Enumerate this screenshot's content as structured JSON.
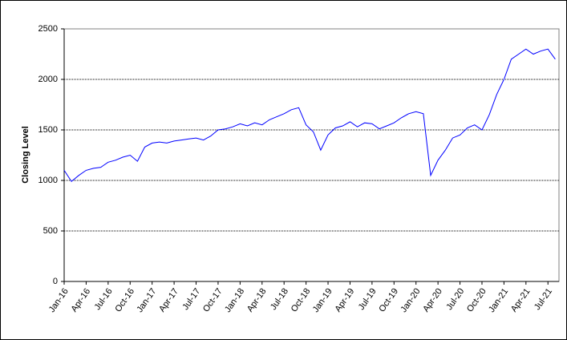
{
  "chart_data": {
    "type": "line",
    "y_label": "Closing Level",
    "categories": [
      "Jan-16",
      null,
      null,
      "Apr-16",
      null,
      null,
      "Jul-16",
      null,
      null,
      "Oct-16",
      null,
      null,
      "Jan-17",
      null,
      null,
      "Apr-17",
      null,
      null,
      "Jul-17",
      null,
      null,
      "Oct-17",
      null,
      null,
      "Jan-18",
      null,
      null,
      "Apr-18",
      null,
      null,
      "Jul-18",
      null,
      null,
      "Oct-18",
      null,
      null,
      "Jan-19",
      null,
      null,
      "Apr-19",
      null,
      null,
      "Jul-19",
      null,
      null,
      "Oct-19",
      null,
      null,
      "Jan-20",
      null,
      null,
      "Apr-20",
      null,
      null,
      "Jul-20",
      null,
      null,
      "Oct-20",
      null,
      null,
      "Jan-21",
      null,
      null,
      "Apr-21",
      null,
      null,
      "Jul-21",
      null
    ],
    "series": [
      {
        "name": "Closing Level",
        "color": "#0000ff",
        "values": [
          1100,
          990,
          1050,
          1100,
          1120,
          1130,
          1180,
          1200,
          1230,
          1250,
          1190,
          1330,
          1370,
          1380,
          1370,
          1390,
          1400,
          1410,
          1420,
          1400,
          1440,
          1500,
          1510,
          1530,
          1560,
          1540,
          1570,
          1550,
          1600,
          1630,
          1660,
          1700,
          1720,
          1550,
          1480,
          1300,
          1450,
          1520,
          1540,
          1580,
          1530,
          1570,
          1560,
          1510,
          1540,
          1570,
          1620,
          1660,
          1680,
          1660,
          1050,
          1200,
          1300,
          1420,
          1450,
          1520,
          1550,
          1500,
          1650,
          1850,
          2000,
          2200,
          2250,
          2300,
          2250,
          2280,
          2300,
          2200
        ]
      }
    ],
    "ylim": [
      0,
      2500
    ],
    "yticks": [
      0,
      500,
      1000,
      1500,
      2000,
      2500
    ],
    "grid": true
  }
}
